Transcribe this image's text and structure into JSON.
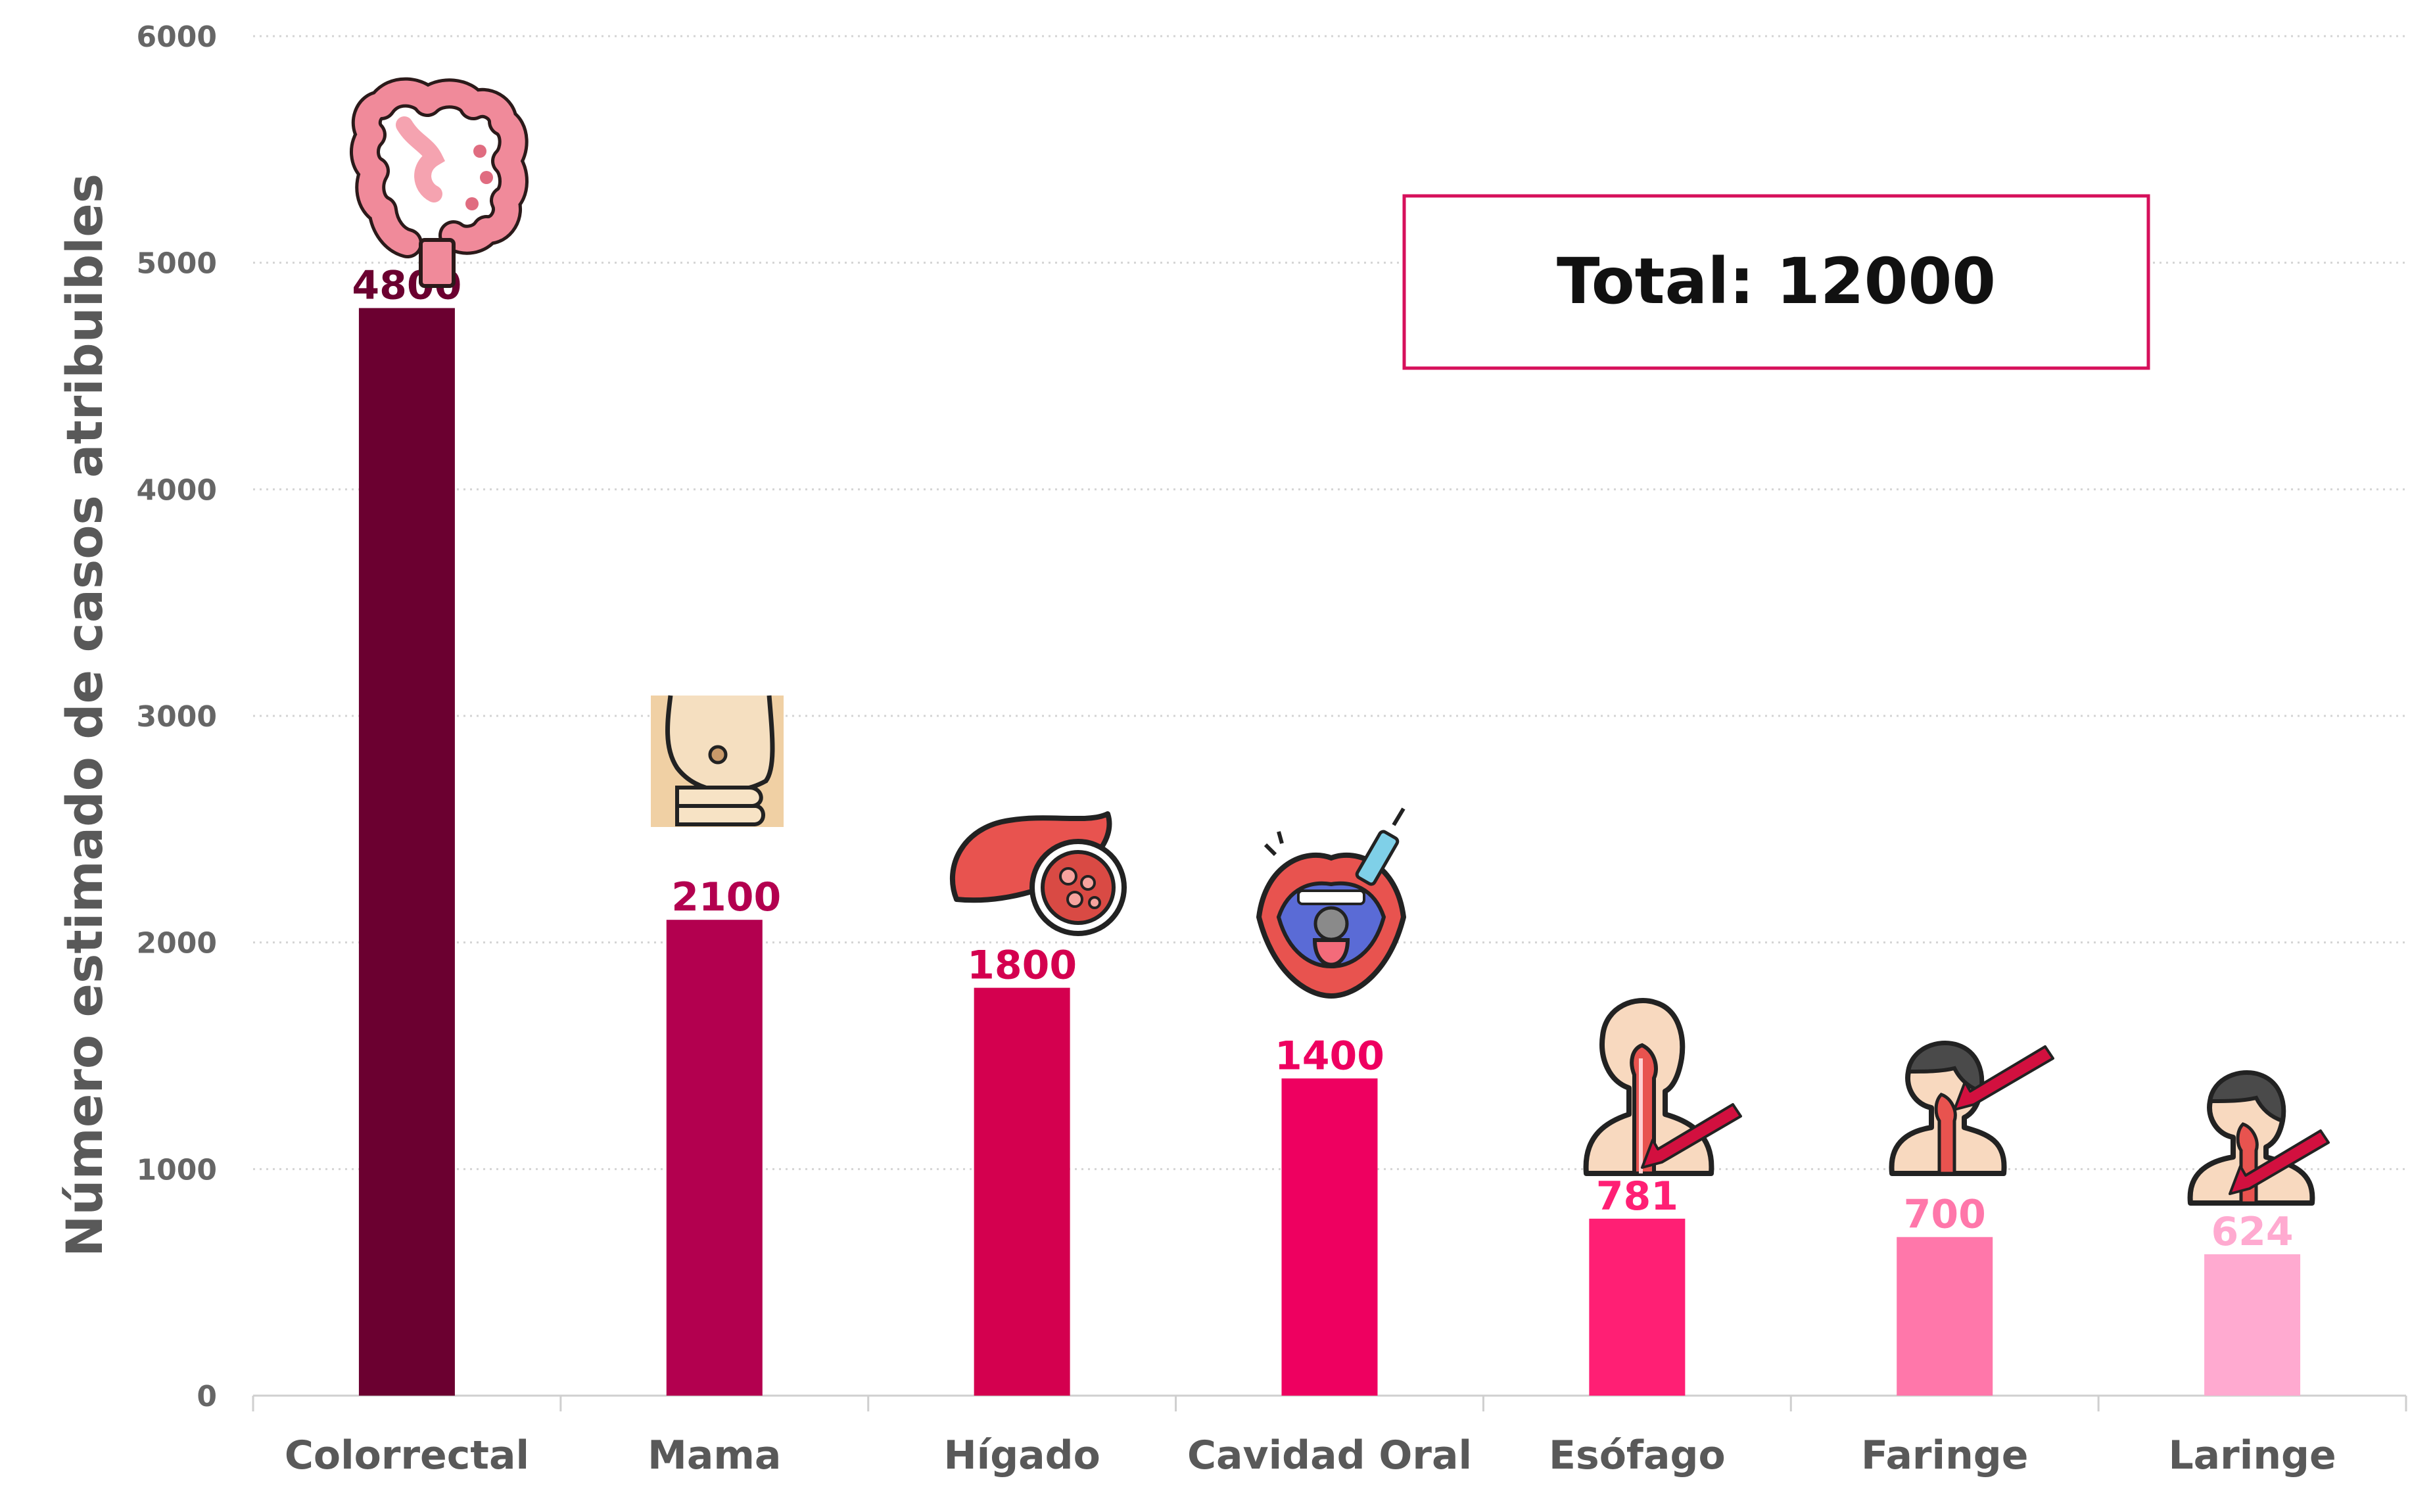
{
  "chart_data": {
    "type": "bar",
    "ylabel": "Número estimado de casos atribuibles",
    "xlabel": "",
    "ylim": [
      0,
      6000
    ],
    "yticks": [
      0,
      1000,
      2000,
      3000,
      4000,
      5000,
      6000
    ],
    "grid": "horizontal dotted",
    "categories": [
      "Colorrectal",
      "Mama",
      "Hígado",
      "Cavidad Oral",
      "Esófago",
      "Faringe",
      "Laringe"
    ],
    "values": [
      4800,
      2100,
      1800,
      1400,
      781,
      700,
      624
    ],
    "value_labels": [
      "4800",
      "2100",
      "1800",
      "1400",
      "781",
      "700",
      "624"
    ],
    "colors": [
      "#6b0030",
      "#b3004f",
      "#d4004f",
      "#ee0060",
      "#ff1f74",
      "#ff77aa",
      "#ffaad0"
    ],
    "icons": [
      "intestine-icon",
      "breast-exam-icon",
      "liver-icon",
      "mouth-icon",
      "esophagus-icon",
      "pharynx-icon",
      "larynx-icon"
    ],
    "annotation": {
      "text": "Total: 12000",
      "border_color": "#d6105b"
    }
  }
}
